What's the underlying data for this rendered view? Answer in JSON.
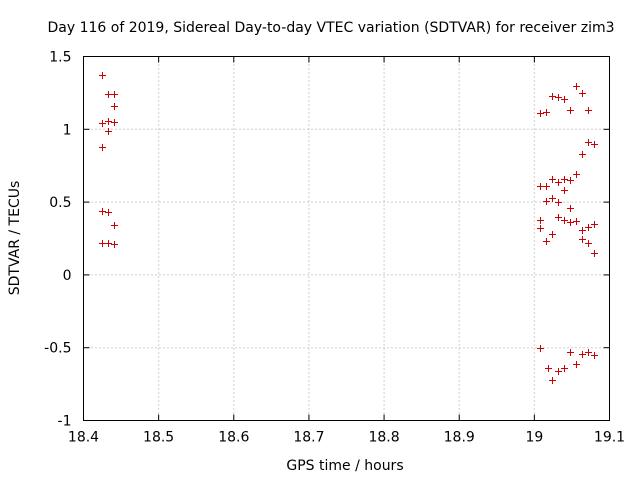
{
  "chart_data": {
    "type": "scatter",
    "title": "Day 116 of 2019, Sidereal Day-to-day VTEC variation (SDTVAR) for receiver zim3",
    "xlabel": "GPS time / hours",
    "ylabel": "SDTVAR / TECUs",
    "xlim": [
      18.4,
      19.1
    ],
    "ylim": [
      -1,
      1.5
    ],
    "x_ticks": [
      "18.4",
      "18.5",
      "18.6",
      "18.7",
      "18.8",
      "18.9",
      "19",
      "19.1"
    ],
    "x_tick_values": [
      18.4,
      18.5,
      18.6,
      18.7,
      18.8,
      18.9,
      19.0,
      19.1
    ],
    "y_ticks": [
      "1.5",
      "1",
      "0.5",
      "0",
      "-0.5",
      "-1"
    ],
    "y_tick_values": [
      1.5,
      1.0,
      0.5,
      0.0,
      -0.5,
      -1.0
    ],
    "grid": true,
    "marker_color": "#cc0000",
    "marker": "plus",
    "series": [
      {
        "name": "SDTVAR",
        "points": [
          [
            18.425,
            1.37
          ],
          [
            18.425,
            1.04
          ],
          [
            18.425,
            0.88
          ],
          [
            18.425,
            0.44
          ],
          [
            18.425,
            0.22
          ],
          [
            18.432,
            1.24
          ],
          [
            18.432,
            1.06
          ],
          [
            18.433,
            0.99
          ],
          [
            18.433,
            0.43
          ],
          [
            18.433,
            0.22
          ],
          [
            18.44,
            1.24
          ],
          [
            18.44,
            1.16
          ],
          [
            18.44,
            1.05
          ],
          [
            18.441,
            0.34
          ],
          [
            18.441,
            0.21
          ],
          [
            19.008,
            1.11
          ],
          [
            19.008,
            0.61
          ],
          [
            19.008,
            0.38
          ],
          [
            19.008,
            0.32
          ],
          [
            19.008,
            -0.5
          ],
          [
            19.016,
            1.12
          ],
          [
            19.016,
            0.61
          ],
          [
            19.016,
            0.51
          ],
          [
            19.016,
            0.23
          ],
          [
            19.018,
            -0.64
          ],
          [
            19.024,
            1.23
          ],
          [
            19.024,
            0.66
          ],
          [
            19.024,
            0.53
          ],
          [
            19.024,
            0.28
          ],
          [
            19.024,
            -0.72
          ],
          [
            19.032,
            1.22
          ],
          [
            19.032,
            0.64
          ],
          [
            19.032,
            0.5
          ],
          [
            19.032,
            0.4
          ],
          [
            19.032,
            -0.66
          ],
          [
            19.04,
            1.21
          ],
          [
            19.04,
            0.66
          ],
          [
            19.04,
            0.58
          ],
          [
            19.04,
            0.38
          ],
          [
            19.04,
            -0.64
          ],
          [
            19.047,
            1.13
          ],
          [
            19.047,
            0.65
          ],
          [
            19.047,
            0.46
          ],
          [
            19.047,
            0.36
          ],
          [
            19.047,
            -0.53
          ],
          [
            19.056,
            1.3
          ],
          [
            19.056,
            0.69
          ],
          [
            19.056,
            0.37
          ],
          [
            19.056,
            -0.61
          ],
          [
            19.063,
            1.25
          ],
          [
            19.063,
            0.83
          ],
          [
            19.063,
            0.31
          ],
          [
            19.063,
            0.25
          ],
          [
            19.063,
            -0.54
          ],
          [
            19.071,
            1.13
          ],
          [
            19.071,
            0.91
          ],
          [
            19.071,
            0.33
          ],
          [
            19.071,
            0.22
          ],
          [
            19.071,
            -0.53
          ],
          [
            19.079,
            0.9
          ],
          [
            19.079,
            0.35
          ],
          [
            19.079,
            0.15
          ],
          [
            19.079,
            -0.55
          ]
        ]
      }
    ]
  }
}
